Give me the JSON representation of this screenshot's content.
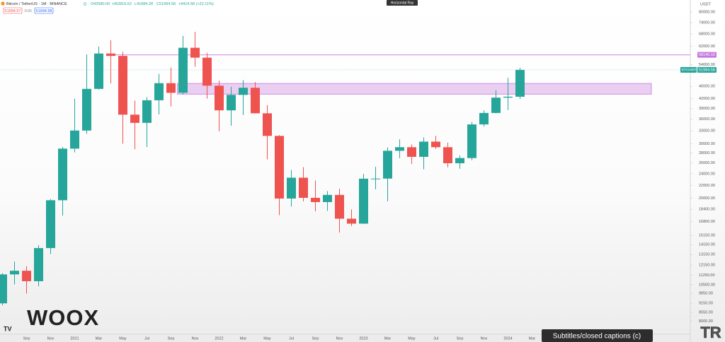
{
  "header": {
    "symbol": "Bitcoin / TetherUS · 1M · BINANCE",
    "ohlc": [
      "O42580.00",
      "H52816.62",
      "L41884.28",
      "C51994.58",
      "+9414.58 (+22.11%)"
    ]
  },
  "trade_panel": {
    "sell": "51994.57",
    "spread": "0.01",
    "buy": "51994.58"
  },
  "tooltip": "Horizontal Ray",
  "overlay": {
    "logo": "WOOX",
    "corner_logo": "TR",
    "captions": "Subtitles/closed captions (c)"
  },
  "chart_data": {
    "type": "candlestick",
    "currency": "USDT",
    "symbol_tag": "BTCUSDT",
    "log_scale": true,
    "up_color": "#26a69a",
    "down_color": "#ef5350",
    "categories": [
      null,
      null,
      "Sep",
      null,
      "Nov",
      null,
      "2021",
      null,
      "Mar",
      null,
      "May",
      null,
      "Jul",
      null,
      "Sep",
      null,
      "Nov",
      null,
      "2022",
      null,
      "Mar",
      null,
      "May",
      null,
      "Jul",
      null,
      "Sep",
      null,
      "Nov",
      null,
      "2023",
      null,
      "Mar",
      null,
      "May",
      null,
      "Jul",
      null,
      "Sep",
      null,
      "Nov",
      null,
      "2024",
      null
    ],
    "extra_categories": [
      "Mar"
    ],
    "open": [
      9137,
      11335,
      11649,
      10776,
      13791,
      19695,
      28923,
      33092,
      45135,
      58740,
      57694,
      37253,
      35045,
      41461,
      47100,
      43824,
      61299,
      56950,
      46216,
      38466,
      43160,
      45510,
      37630,
      31801,
      19942,
      23293,
      20050,
      19422,
      20490,
      17164,
      16542,
      23125,
      23141,
      28465,
      29233,
      27210,
      30472,
      29232,
      25941,
      26962,
      34639,
      37723,
      42283,
      42580
    ],
    "high": [
      11444,
      12468,
      12050,
      14100,
      19863,
      29300,
      41950,
      58352,
      61844,
      64854,
      59500,
      41330,
      42448,
      50500,
      52920,
      67000,
      69000,
      59054,
      47990,
      45821,
      48189,
      47444,
      40023,
      31982,
      24668,
      25211,
      22799,
      21085,
      21480,
      18387,
      23960,
      25250,
      29184,
      31000,
      29820,
      31431,
      31804,
      30244,
      27488,
      35280,
      38450,
      44700,
      48969,
      52816.62
    ],
    "low": [
      9000,
      10518,
      9825,
      10374,
      13195,
      17572,
      28130,
      32296,
      44950,
      47044,
      30000,
      28805,
      29278,
      37332,
      39600,
      43283,
      53256,
      42000,
      32917,
      34322,
      37155,
      37578,
      26700,
      17622,
      18781,
      19520,
      18125,
      18190,
      15476,
      16256,
      16499,
      21351,
      19549,
      26942,
      25811,
      24800,
      28861,
      25166,
      24901,
      26538,
      34097,
      37615,
      38555,
      41884.28
    ],
    "close": [
      11335,
      11649,
      10776,
      13791,
      19695,
      28923,
      33092,
      45135,
      58740,
      57694,
      37253,
      35045,
      41461,
      47100,
      43824,
      61299,
      56950,
      46216,
      38466,
      43160,
      45510,
      37630,
      31801,
      19942,
      23293,
      20050,
      19422,
      20490,
      17164,
      16542,
      23125,
      23141,
      28465,
      29233,
      27210,
      30472,
      29232,
      25941,
      26962,
      34639,
      37723,
      42283,
      42580,
      51994.58
    ],
    "ylim": [
      7260,
      87500
    ],
    "yticks": [
      {
        "value": 80000,
        "label": "80000.00"
      },
      {
        "value": 74000,
        "label": "74000.00"
      },
      {
        "value": 68000,
        "label": "68000.00"
      },
      {
        "value": 62000,
        "label": "62000.00"
      },
      {
        "value": 54000,
        "label": "54000.00"
      },
      {
        "value": 46000,
        "label": "46000.00"
      },
      {
        "value": 42000,
        "label": "42000.00"
      },
      {
        "value": 39000,
        "label": "39000.00"
      },
      {
        "value": 36000,
        "label": "36000.00"
      },
      {
        "value": 33000,
        "label": "33000.00"
      },
      {
        "value": 30000,
        "label": "30000.00"
      },
      {
        "value": 28000,
        "label": "28000.00"
      },
      {
        "value": 26000,
        "label": "26000.00"
      },
      {
        "value": 24000,
        "label": "24000.00"
      },
      {
        "value": 22000,
        "label": "22000.00"
      },
      {
        "value": 20000,
        "label": "20000.00"
      },
      {
        "value": 18400,
        "label": "18400.00"
      },
      {
        "value": 16800,
        "label": "16800.00"
      },
      {
        "value": 15150,
        "label": "15150.00"
      },
      {
        "value": 14150,
        "label": "14150.00"
      },
      {
        "value": 13150,
        "label": "13150.00"
      },
      {
        "value": 12150,
        "label": "12150.00"
      },
      {
        "value": 11250,
        "label": "11250.00"
      },
      {
        "value": 10500,
        "label": "10500.00"
      },
      {
        "value": 9850,
        "label": "9850.00"
      },
      {
        "value": 9150,
        "label": "9150.00"
      },
      {
        "value": 8550,
        "label": "8550.00"
      },
      {
        "value": 8000,
        "label": "8000.00"
      }
    ],
    "horizontal_ray": {
      "value": 58140.16,
      "color": "#c678dd"
    },
    "rectangle": {
      "low": 43400,
      "high": 47000,
      "color": "#c678dd"
    }
  }
}
